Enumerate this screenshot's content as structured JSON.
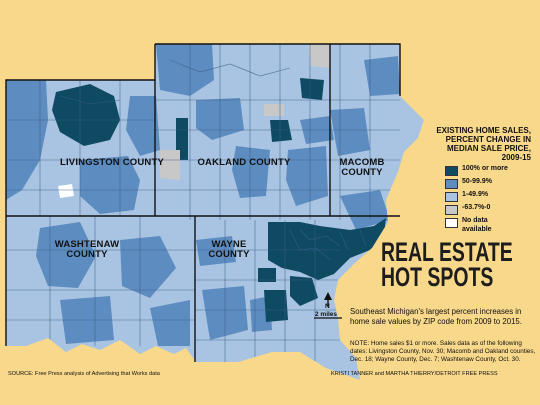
{
  "map": {
    "counties": {
      "livingston": "LIVINGSTON COUNTY",
      "oakland": "OAKLAND COUNTY",
      "macomb": "MACOMB COUNTY",
      "washtenaw": "WASHTENAW COUNTY",
      "wayne": "WAYNE COUNTY"
    },
    "scale_label": "2 miles",
    "north_label": "N"
  },
  "legend": {
    "title": "EXISTING HOME SALES, PERCENT CHANGE IN MEDIAN SALE PRICE, 2009-15",
    "items": [
      {
        "label": "100% or more",
        "color": "#0f4a63"
      },
      {
        "label": "50-99.9%",
        "color": "#5d8cc0"
      },
      {
        "label": "1-49.9%",
        "color": "#a8c4e2"
      },
      {
        "label": "-63.7%-0",
        "color": "#c8c8c8"
      },
      {
        "label": "No data available",
        "color": "#ffffff"
      }
    ]
  },
  "headline": {
    "line1": "REAL ESTATE",
    "line2": "HOT SPOTS"
  },
  "deck": "Southeast Michigan's largest percent increases in home sale values by ZIP code from 2009 to 2015.",
  "note": "NOTE: Home sales $1 or more. Sales data as of the following dates: Livingston County, Nov. 30; Macomb and Oakland counties, Dec. 18; Wayne County, Dec. 7; Washtenaw County, Oct. 30.",
  "source": "SOURCE: Free Press analysis of Advertising that Works data",
  "credit": "KRISTI TANNER and MARTHA THIERRY/DETROIT FREE PRESS",
  "colors": {
    "background": "#f8d88a",
    "dark": "#0f4a63",
    "mid": "#5d8cc0",
    "light": "#a8c4e2",
    "gray": "#c8c8c8",
    "nodata": "#ffffff",
    "water": "#f8d88a"
  }
}
